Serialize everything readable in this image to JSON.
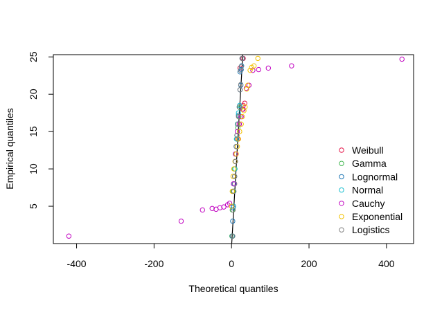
{
  "chart_data": {
    "type": "scatter",
    "title": "",
    "xlabel": "Theoretical quantiles",
    "ylabel": "Empirical quantiles",
    "xlim": [
      -460,
      470
    ],
    "ylim": [
      0,
      25.3
    ],
    "xticks": [
      -400,
      -200,
      0,
      200,
      400
    ],
    "yticks": [
      5,
      10,
      15,
      20,
      25
    ],
    "xtick_labels": [
      "-400",
      "-200",
      "0",
      "200",
      "400"
    ],
    "ytick_labels": [
      "5",
      "10",
      "15",
      "20",
      "25"
    ],
    "grid": false,
    "legend_position": "bottom-right",
    "reference_line": {
      "from": [
        0.5,
        0
      ],
      "to": [
        29,
        25.3
      ],
      "color": "#000000"
    },
    "series": [
      {
        "name": "Weibull",
        "color": "#e6194b",
        "points": [
          [
            2,
            1
          ],
          [
            5,
            5
          ],
          [
            8,
            8
          ],
          [
            12,
            12
          ],
          [
            16,
            14
          ],
          [
            20,
            16
          ],
          [
            24,
            17
          ],
          [
            28,
            18
          ],
          [
            30,
            18.5
          ],
          [
            34,
            18.8
          ],
          [
            22,
            23.5
          ],
          [
            30,
            24.8
          ]
        ]
      },
      {
        "name": "Gamma",
        "color": "#3cb44b",
        "points": [
          [
            1,
            1
          ],
          [
            2,
            4.5
          ],
          [
            4,
            7
          ],
          [
            7,
            10
          ],
          [
            10,
            12
          ],
          [
            13,
            14
          ],
          [
            16,
            15.5
          ],
          [
            19,
            17
          ],
          [
            22,
            18.2
          ]
        ]
      },
      {
        "name": "Lognormal",
        "color": "#1f77b4",
        "points": [
          [
            2,
            1
          ],
          [
            3,
            3
          ],
          [
            4,
            4.8
          ],
          [
            6,
            7
          ],
          [
            8,
            9
          ],
          [
            10,
            11
          ],
          [
            12,
            13
          ],
          [
            14,
            14.5
          ],
          [
            16,
            16
          ],
          [
            18,
            17.2
          ],
          [
            20,
            18.3
          ],
          [
            22,
            20.6
          ],
          [
            24,
            21.2
          ],
          [
            22,
            23
          ],
          [
            25,
            23.3
          ],
          [
            26,
            23.8
          ],
          [
            28,
            24.8
          ]
        ]
      },
      {
        "name": "Normal",
        "color": "#17becf",
        "points": [
          [
            3,
            1
          ],
          [
            5,
            5
          ],
          [
            7,
            8
          ],
          [
            9,
            10
          ],
          [
            11,
            12
          ],
          [
            13,
            14
          ],
          [
            15,
            16
          ],
          [
            18,
            17.5
          ],
          [
            21,
            18.5
          ]
        ]
      },
      {
        "name": "Cauchy",
        "color": "#c000c0",
        "points": [
          [
            -420,
            1
          ],
          [
            -130,
            3
          ],
          [
            -75,
            4.5
          ],
          [
            -50,
            4.7
          ],
          [
            -40,
            4.6
          ],
          [
            -30,
            4.8
          ],
          [
            -20,
            4.9
          ],
          [
            -10,
            5.2
          ],
          [
            -5,
            5.4
          ],
          [
            5,
            8
          ],
          [
            10,
            12
          ],
          [
            15,
            15
          ],
          [
            20,
            16
          ],
          [
            25,
            17
          ],
          [
            30,
            18
          ],
          [
            38,
            20.8
          ],
          [
            45,
            21.2
          ],
          [
            55,
            23.2
          ],
          [
            70,
            23.3
          ],
          [
            95,
            23.5
          ],
          [
            155,
            23.8
          ],
          [
            440,
            24.7
          ]
        ]
      },
      {
        "name": "Exponential",
        "color": "#f2c200",
        "points": [
          [
            0,
            5
          ],
          [
            2,
            7
          ],
          [
            4,
            9
          ],
          [
            6,
            10
          ],
          [
            9,
            11
          ],
          [
            12,
            12
          ],
          [
            15,
            13
          ],
          [
            18,
            14
          ],
          [
            21,
            15
          ],
          [
            25,
            16
          ],
          [
            28,
            17
          ],
          [
            32,
            17.8
          ],
          [
            35,
            18.3
          ],
          [
            39,
            20.7
          ],
          [
            42,
            21.2
          ],
          [
            48,
            23.2
          ],
          [
            52,
            23.6
          ],
          [
            58,
            23.8
          ],
          [
            68,
            24.8
          ]
        ]
      },
      {
        "name": "Logistics",
        "color": "#808080",
        "points": [
          [
            3,
            1
          ],
          [
            4,
            4.5
          ],
          [
            6,
            7
          ],
          [
            8,
            9
          ],
          [
            10,
            11
          ],
          [
            12,
            13
          ],
          [
            14,
            14.5
          ],
          [
            16,
            16
          ],
          [
            18,
            17
          ],
          [
            20,
            18.3
          ],
          [
            22,
            20.6
          ],
          [
            24,
            21.3
          ],
          [
            23,
            23.2
          ],
          [
            25,
            23.7
          ],
          [
            27,
            24.8
          ]
        ]
      }
    ]
  }
}
